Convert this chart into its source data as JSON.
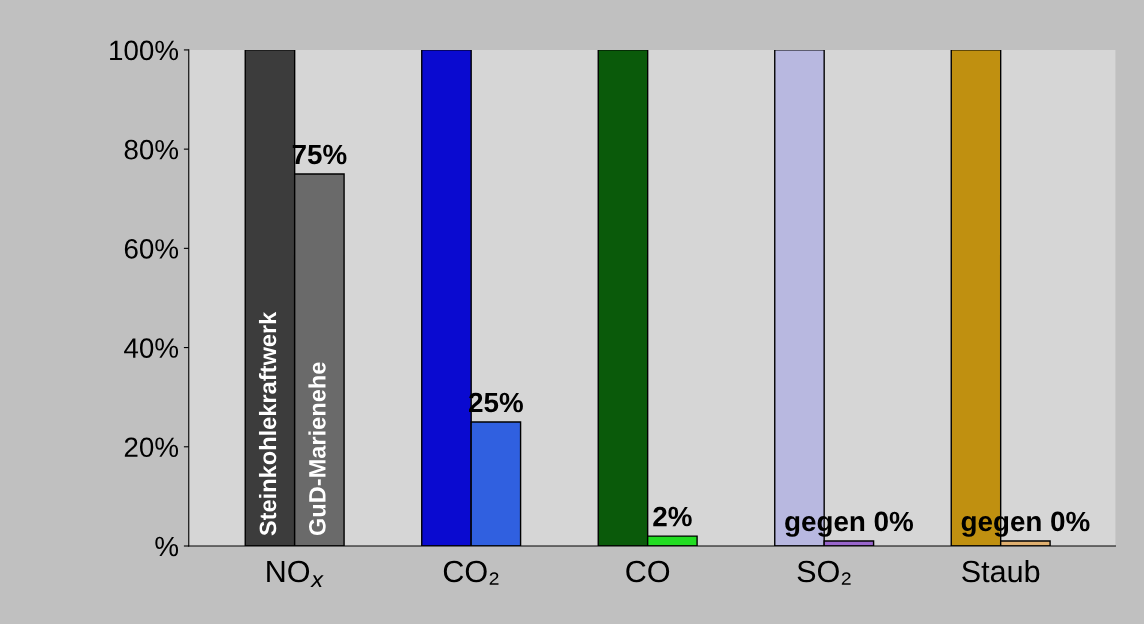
{
  "chart_data": {
    "type": "bar",
    "categories": [
      "NO$_{x}$",
      "CO₂",
      "CO",
      "SO₂",
      "Staub"
    ],
    "series": [
      {
        "name": "Steinkohlekraftwerk",
        "colors": [
          "#3c3c3c",
          "#0a0ad0",
          "#0a5a0a",
          "#b8b8e0",
          "#c09010"
        ],
        "values": [
          100,
          100,
          100,
          100,
          100
        ]
      },
      {
        "name": "GuD-Marienehe",
        "colors": [
          "#6a6a6a",
          "#3060e0",
          "#22dd22",
          "#9966cc",
          "#e0b070"
        ],
        "values": [
          75,
          25,
          2,
          1,
          1
        ],
        "value_labels": [
          "75%",
          "25%",
          "2%",
          "gegen 0%",
          "gegen 0%"
        ]
      }
    ],
    "ylim": [
      0,
      100
    ],
    "yticks": [
      {
        "value": 0,
        "label": "%"
      },
      {
        "value": 20,
        "label": "20%"
      },
      {
        "value": 40,
        "label": "40%"
      },
      {
        "value": 60,
        "label": "60%"
      },
      {
        "value": 80,
        "label": "80%"
      },
      {
        "value": 100,
        "label": "100%"
      }
    ],
    "grid": false,
    "legend": false
  }
}
